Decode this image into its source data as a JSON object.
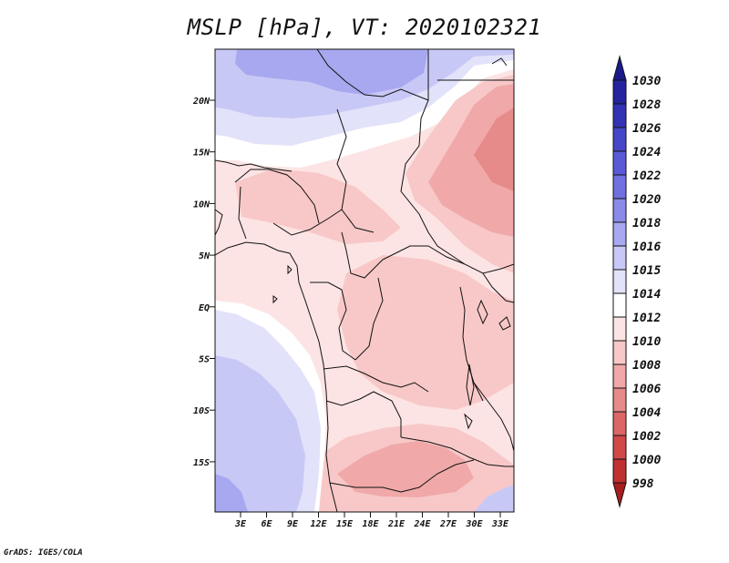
{
  "title": "MSLP [hPa], VT: 2020102321",
  "credit": "GrADS: IGES/COLA",
  "map": {
    "region": "Central and Southern Africa",
    "lat_labels": [
      "20N",
      "15N",
      "10N",
      "5N",
      "EQ",
      "5S",
      "10S",
      "15S"
    ],
    "lon_labels": [
      "3E",
      "6E",
      "9E",
      "12E",
      "15E",
      "18E",
      "21E",
      "24E",
      "27E",
      "30E",
      "33E"
    ]
  },
  "colorbar": {
    "labels": [
      "1030",
      "1028",
      "1026",
      "1024",
      "1022",
      "1020",
      "1018",
      "1016",
      "1015",
      "1014",
      "1012",
      "1010",
      "1008",
      "1006",
      "1004",
      "1002",
      "1000",
      "998"
    ],
    "colors": [
      "#1a1a8c",
      "#24249e",
      "#3232b4",
      "#4646c8",
      "#5a5ad8",
      "#7070e0",
      "#8a8ae8",
      "#a8a8f0",
      "#c8c8f6",
      "#e2e2fa",
      "#ffffff",
      "#fde4e4",
      "#f8c8c8",
      "#f0a8a8",
      "#e68a8a",
      "#dc6666",
      "#d04848",
      "#c03030",
      "#a81e1e"
    ]
  },
  "colors": {
    "deep_blue": "#8a8ae8",
    "light_blue": "#c8c8f6",
    "pale_blue": "#e2e2fa",
    "white": "#ffffff",
    "pale_pink": "#fde4e4",
    "light_pink": "#f8c8c8",
    "mid_pink": "#f0a8a8",
    "salmon": "#e68a8a"
  }
}
